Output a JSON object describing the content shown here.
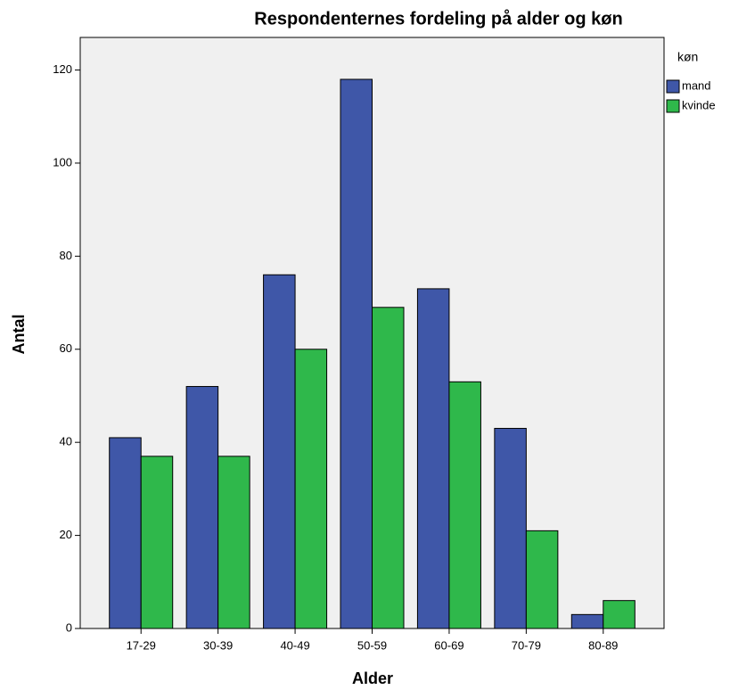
{
  "chart_data": {
    "type": "bar",
    "title": "Respondenternes fordeling på alder og køn",
    "x_label": "Alder",
    "y_label": "Antal",
    "categories": [
      "17-29",
      "30-39",
      "40-49",
      "50-59",
      "60-69",
      "70-79",
      "80-89"
    ],
    "legend_title": "køn",
    "legend": "right",
    "series": [
      {
        "name": "mand",
        "color": "#3f57a8",
        "values": [
          41,
          52,
          76,
          118,
          73,
          43,
          3
        ]
      },
      {
        "name": "kvinde",
        "color": "#2fb84b",
        "values": [
          37,
          37,
          60,
          69,
          53,
          21,
          6
        ]
      }
    ],
    "ylim": [
      0,
      127
    ],
    "yticks": [
      0,
      20,
      40,
      60,
      80,
      100,
      120
    ],
    "grid": false
  }
}
